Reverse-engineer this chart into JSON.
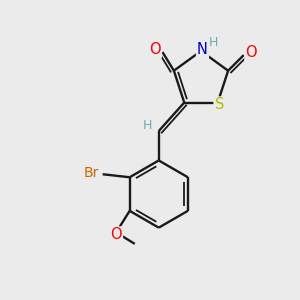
{
  "background_color": "#ebebeb",
  "bond_color": "#1a1a1a",
  "atom_colors": {
    "O": "#ff0000",
    "N": "#0000cc",
    "S": "#bbbb00",
    "Br": "#cc6600",
    "C": "#1a1a1a",
    "H": "#6aacac"
  },
  "figsize": [
    3.0,
    3.0
  ],
  "dpi": 100,
  "lw": 1.7,
  "lw2": 1.3
}
